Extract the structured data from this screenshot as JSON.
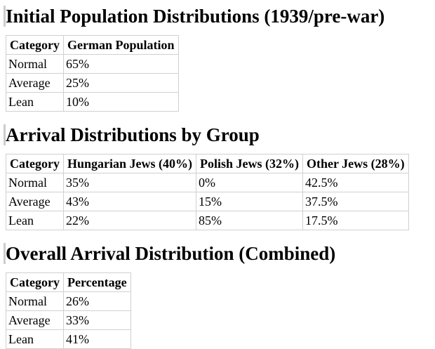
{
  "sections": [
    {
      "title": "Initial Population Distributions (1939/pre-war)",
      "table": {
        "header": [
          "Category",
          "German Population"
        ],
        "rows": [
          [
            "Normal",
            "65%"
          ],
          [
            "Average",
            "25%"
          ],
          [
            "Lean",
            "10%"
          ]
        ]
      }
    },
    {
      "title": "Arrival Distributions by Group",
      "table": {
        "header": [
          "Category",
          "Hungarian Jews (40%)",
          "Polish Jews (32%)",
          "Other Jews (28%)"
        ],
        "rows": [
          [
            "Normal",
            "35%",
            "0%",
            "42.5%"
          ],
          [
            "Average",
            "43%",
            "15%",
            "37.5%"
          ],
          [
            "Lean",
            "22%",
            "85%",
            "17.5%"
          ]
        ]
      }
    },
    {
      "title": "Overall Arrival Distribution (Combined)",
      "table": {
        "header": [
          "Category",
          "Percentage"
        ],
        "rows": [
          [
            "Normal",
            "26%"
          ],
          [
            "Average",
            "33%"
          ],
          [
            "Lean",
            "41%"
          ]
        ]
      }
    }
  ]
}
